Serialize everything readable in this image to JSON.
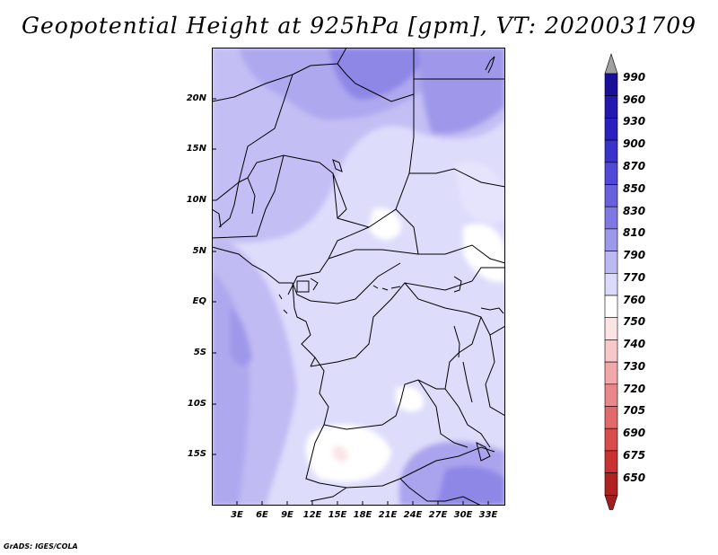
{
  "title": "Geopotential Height at 925hPa [gpm], VT: 2020031709",
  "footer": "GrADS: IGES/COLA",
  "map": {
    "lat_ticks": [
      "20N",
      "15N",
      "10N",
      "5N",
      "EQ",
      "5S",
      "10S",
      "15S"
    ],
    "lon_ticks": [
      "3E",
      "6E",
      "9E",
      "12E",
      "15E",
      "18E",
      "21E",
      "24E",
      "27E",
      "30E",
      "33E"
    ],
    "lat_range": [
      "19S",
      "24.5N"
    ],
    "lon_range": [
      "0",
      "35E"
    ]
  },
  "legend": {
    "labels": [
      "990",
      "960",
      "930",
      "900",
      "870",
      "850",
      "830",
      "810",
      "790",
      "770",
      "760",
      "750",
      "740",
      "730",
      "720",
      "705",
      "690",
      "675",
      "650"
    ],
    "colors": {
      "top_arrow": "#a0a0a0",
      "bottom_arrow": "#a01e1e",
      "bins_top_to_bottom": [
        "#1a0f9a",
        "#2318b0",
        "#2a20c0",
        "#3a32cc",
        "#5048d6",
        "#6860dc",
        "#8078e2",
        "#9e98ea",
        "#bcb8f2",
        "#dcdafa",
        "#ffffff",
        "#fde4e4",
        "#f8c8c8",
        "#f0a8a8",
        "#e88888",
        "#e06a6a",
        "#d84c4c",
        "#c83232",
        "#b02222"
      ]
    }
  }
}
